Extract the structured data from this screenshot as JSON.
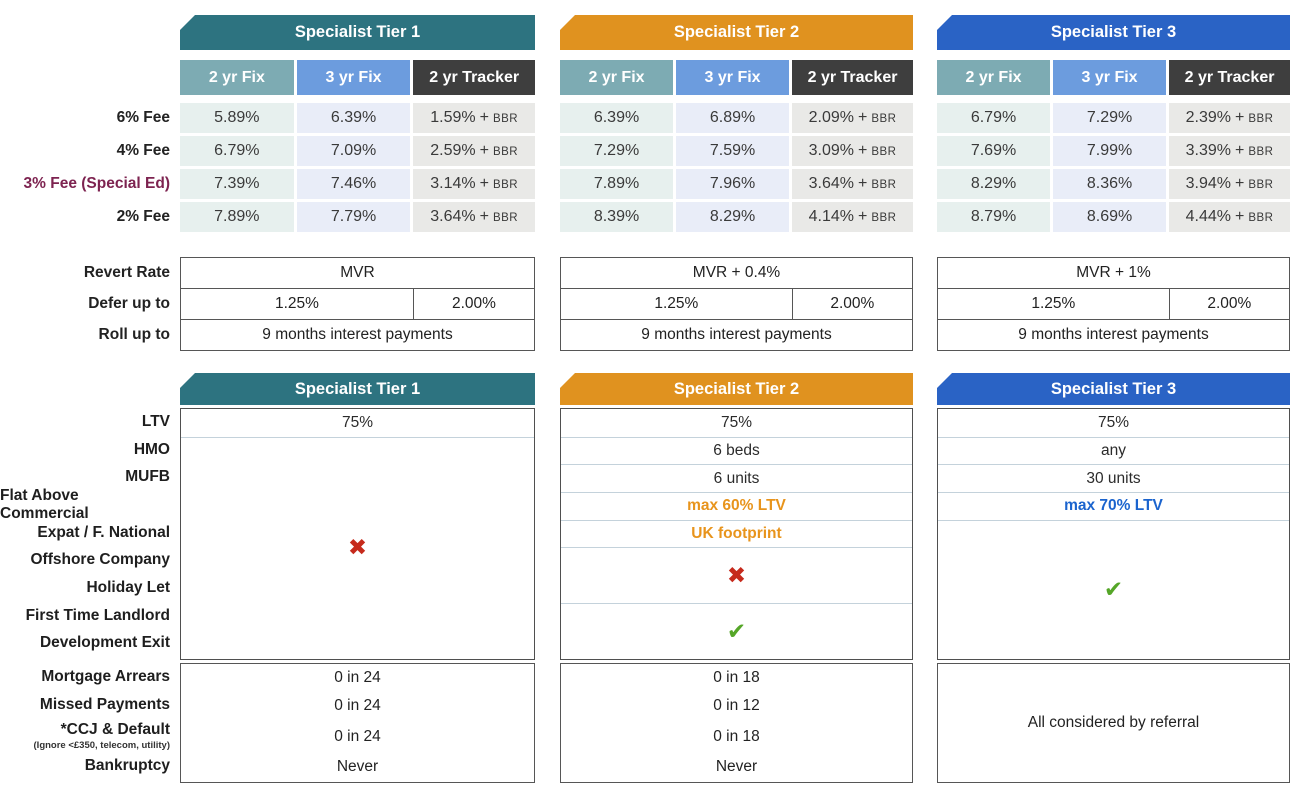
{
  "palette": {
    "tier1_teal": "#2D7380",
    "tier2_orange": "#E0921F",
    "tier3_blue": "#2A63C5",
    "col_2yrfix_teal": "#7DABB3",
    "col_3yrfix_blue": "#6C9CDE",
    "col_tracker_dark": "#3E3E3E",
    "cell_teal_bg": "#E7F0EE",
    "cell_blue_bg": "#E9EDF8",
    "cell_gray_bg": "#E9E9E7",
    "special_fee_maroon": "#7D2350",
    "cross_red": "#C62A1C",
    "check_green": "#55A628",
    "orange_text": "#E8941C",
    "blue_text": "#1B64CE"
  },
  "icons": {
    "cross": "✖",
    "check": "✔"
  },
  "labels": {
    "bbr_plus": "+",
    "bbr": "BBR"
  },
  "product_columns": [
    "2 yr Fix",
    "3 yr Fix",
    "2 yr Tracker"
  ],
  "fee_labels": [
    "6% Fee",
    "4% Fee",
    "3% Fee (Special Ed)",
    "2% Fee"
  ],
  "revert_labels": [
    "Revert Rate",
    "Defer up to",
    "Roll up to"
  ],
  "criteria_labels": [
    "LTV",
    "HMO",
    "MUFB",
    "Flat Above Commercial",
    "Expat / F. National",
    "Offshore Company",
    "Holiday Let",
    "First Time Landlord",
    "Development Exit"
  ],
  "adverse_labels": [
    "Mortgage Arrears",
    "Missed Payments",
    "*CCJ & Default",
    "Bankruptcy"
  ],
  "ccj_note": "(Ignore <£350, telecom, utility)",
  "tiers": [
    {
      "title": "Specialist Tier 1",
      "rates": [
        [
          "5.89%",
          "6.39%",
          "1.59%"
        ],
        [
          "6.79%",
          "7.09%",
          "2.59%"
        ],
        [
          "7.39%",
          "7.46%",
          "3.14%"
        ],
        [
          "7.89%",
          "7.79%",
          "3.64%"
        ]
      ],
      "revert_rate": "MVR",
      "defer": [
        "1.25%",
        "2.00%"
      ],
      "roll_up": "9 months interest payments",
      "criteria": {
        "ltv": "75%"
      },
      "adverse": [
        "0 in 24",
        "0 in 24",
        "0 in 24",
        "Never"
      ]
    },
    {
      "title": "Specialist Tier 2",
      "rates": [
        [
          "6.39%",
          "6.89%",
          "2.09%"
        ],
        [
          "7.29%",
          "7.59%",
          "3.09%"
        ],
        [
          "7.89%",
          "7.96%",
          "3.64%"
        ],
        [
          "8.39%",
          "8.29%",
          "4.14%"
        ]
      ],
      "revert_rate": "MVR + 0.4%",
      "defer": [
        "1.25%",
        "2.00%"
      ],
      "roll_up": "9 months interest payments",
      "criteria": {
        "ltv": "75%",
        "hmo": "6 beds",
        "mufb": "6 units",
        "flat_above_commercial": "max 60% LTV",
        "expat_f_national": "UK footprint"
      },
      "adverse": [
        "0 in 18",
        "0 in 12",
        "0 in 18",
        "Never"
      ]
    },
    {
      "title": "Specialist Tier 3",
      "rates": [
        [
          "6.79%",
          "7.29%",
          "2.39%"
        ],
        [
          "7.69%",
          "7.99%",
          "3.39%"
        ],
        [
          "8.29%",
          "8.36%",
          "3.94%"
        ],
        [
          "8.79%",
          "8.69%",
          "4.44%"
        ]
      ],
      "revert_rate": "MVR + 1%",
      "defer": [
        "1.25%",
        "2.00%"
      ],
      "roll_up": "9 months interest payments",
      "criteria": {
        "ltv": "75%",
        "hmo": "any",
        "mufb": "30 units",
        "flat_above_commercial": "max 70% LTV"
      },
      "adverse_referral": "All considered by referral"
    }
  ]
}
